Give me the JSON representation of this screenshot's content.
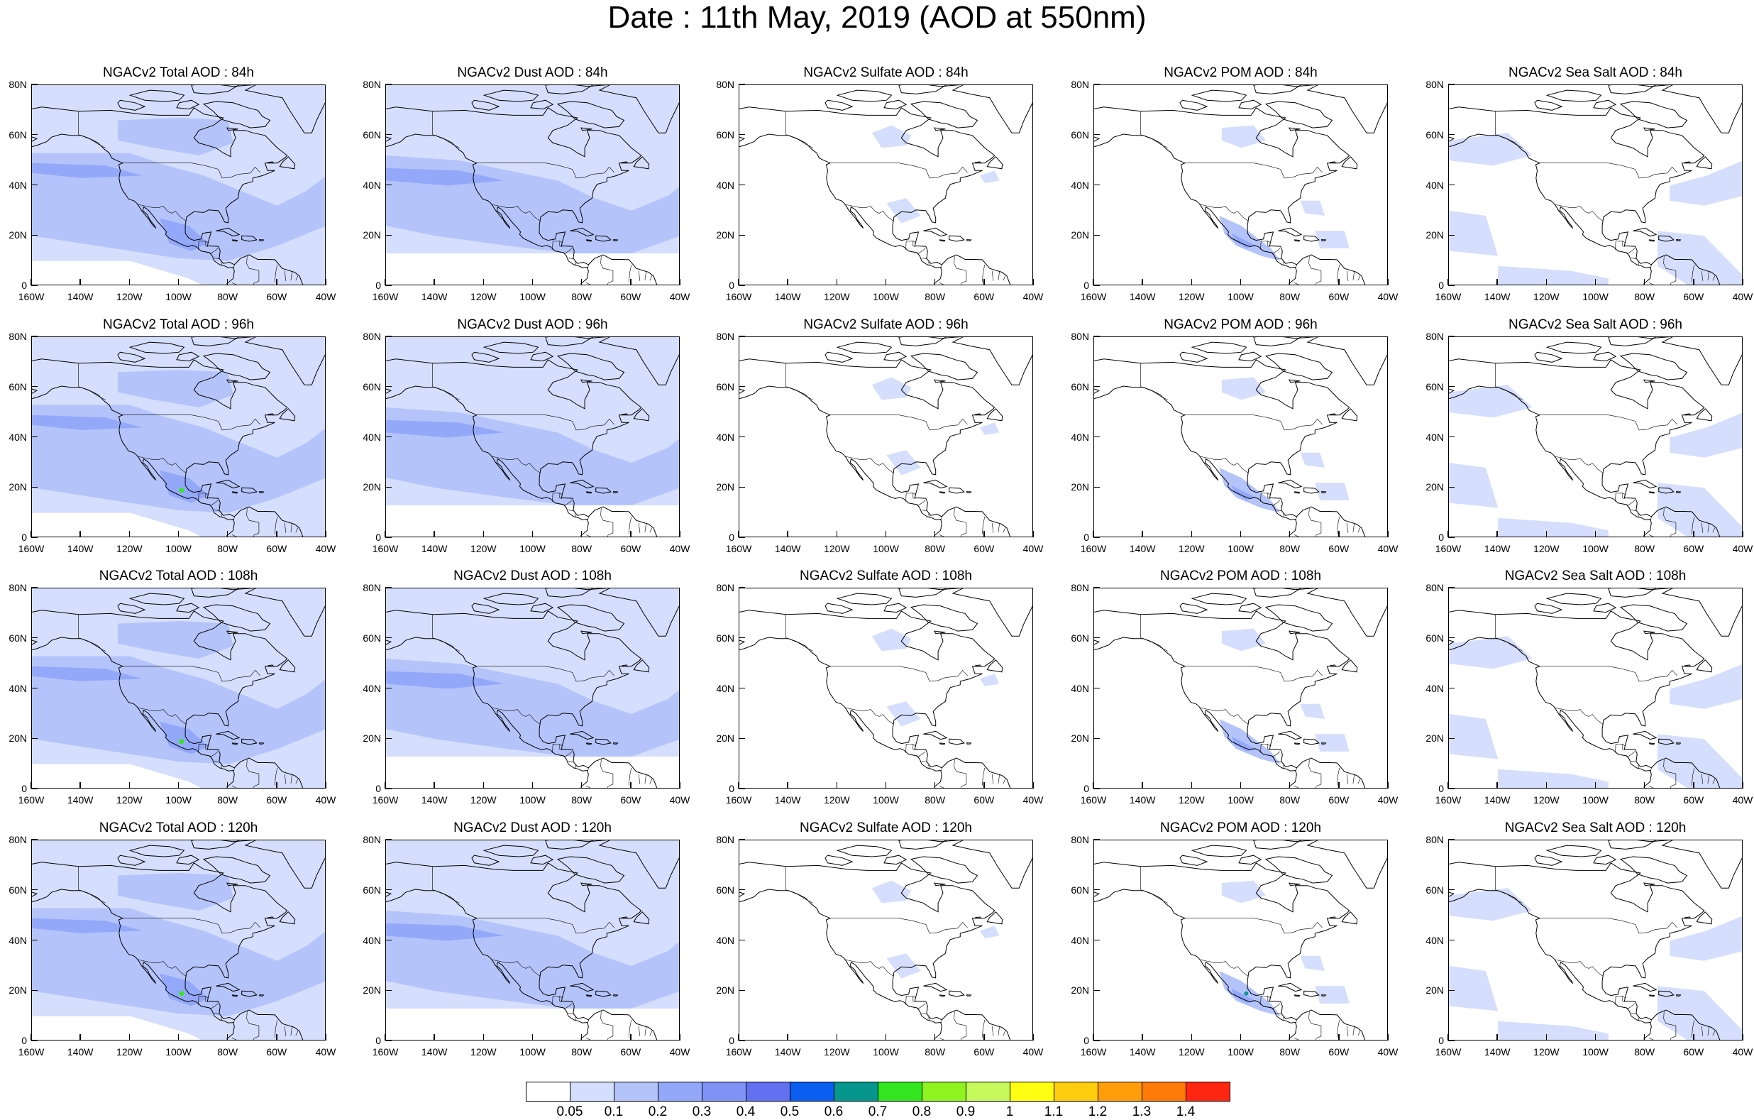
{
  "title": "Date : 11th May, 2019 (AOD at 550nm)",
  "axes": {
    "x_ticks": [
      "160W",
      "140W",
      "120W",
      "100W",
      "80W",
      "60W",
      "40W"
    ],
    "y_ticks": [
      "80N",
      "60N",
      "40N",
      "20N",
      "0"
    ],
    "lon_range": [
      -160,
      -40
    ],
    "lat_range": [
      0,
      80
    ]
  },
  "panels": [
    [
      {
        "title": "NGACv2 Total AOD : 84h",
        "species": "total"
      },
      {
        "title": "NGACv2 Dust AOD : 84h",
        "species": "dust"
      },
      {
        "title": "NGACv2 Sulfate AOD : 84h",
        "species": "sulfate"
      },
      {
        "title": "NGACv2 POM AOD : 84h",
        "species": "pom"
      },
      {
        "title": "NGACv2 Sea Salt AOD : 84h",
        "species": "seasalt"
      }
    ],
    [
      {
        "title": "NGACv2 Total AOD : 96h",
        "species": "total"
      },
      {
        "title": "NGACv2 Dust AOD : 96h",
        "species": "dust"
      },
      {
        "title": "NGACv2 Sulfate AOD : 96h",
        "species": "sulfate"
      },
      {
        "title": "NGACv2 POM AOD : 96h",
        "species": "pom"
      },
      {
        "title": "NGACv2 Sea Salt AOD : 96h",
        "species": "seasalt"
      }
    ],
    [
      {
        "title": "NGACv2 Total AOD : 108h",
        "species": "total"
      },
      {
        "title": "NGACv2 Dust AOD : 108h",
        "species": "dust"
      },
      {
        "title": "NGACv2 Sulfate AOD : 108h",
        "species": "sulfate"
      },
      {
        "title": "NGACv2 POM AOD : 108h",
        "species": "pom"
      },
      {
        "title": "NGACv2 Sea Salt AOD : 108h",
        "species": "seasalt"
      }
    ],
    [
      {
        "title": "NGACv2 Total AOD : 120h",
        "species": "total"
      },
      {
        "title": "NGACv2 Dust AOD : 120h",
        "species": "dust"
      },
      {
        "title": "NGACv2 Sulfate AOD : 120h",
        "species": "sulfate"
      },
      {
        "title": "NGACv2 POM AOD : 120h",
        "species": "pom"
      },
      {
        "title": "NGACv2 Sea Salt  AOD : 120h",
        "species": "seasalt"
      }
    ]
  ],
  "colorbar": {
    "labels": [
      "0.05",
      "0.1",
      "0.2",
      "0.3",
      "0.4",
      "0.5",
      "0.6",
      "0.7",
      "0.8",
      "0.9",
      "1",
      "1.1",
      "1.2",
      "1.3",
      "1.4"
    ],
    "colors": [
      "#ffffff",
      "#d5defc",
      "#b4c4fb",
      "#94a8fa",
      "#8094f7",
      "#6370f0",
      "#0b5ff0",
      "#07968e",
      "#33e61f",
      "#8ef31f",
      "#c6fa5c",
      "#fffd12",
      "#ffcc0f",
      "#ff9e0a",
      "#ff7a08",
      "#ff2612"
    ]
  }
}
